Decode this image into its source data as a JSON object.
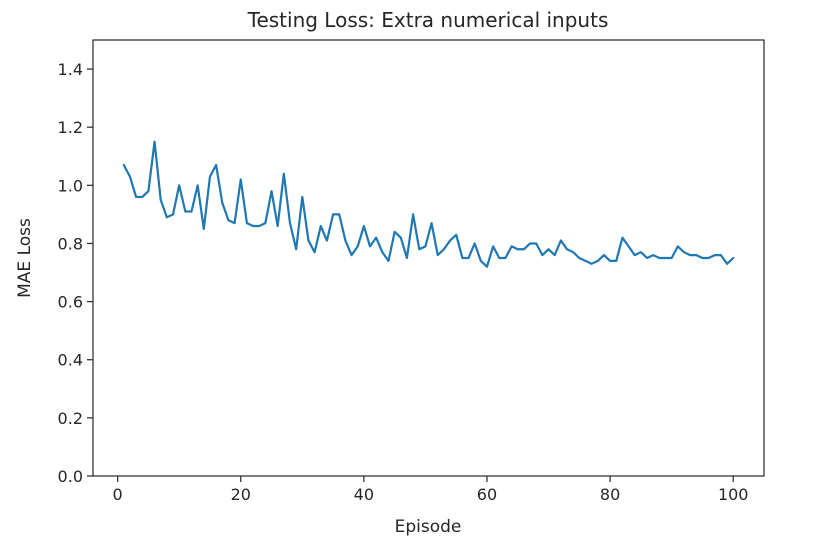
{
  "chart_data": {
    "type": "line",
    "title": "Testing Loss: Extra numerical inputs",
    "xlabel": "Episode",
    "ylabel": "MAE Loss",
    "xlim": [
      -4,
      105
    ],
    "ylim": [
      0,
      1.5
    ],
    "xticks": [
      0,
      20,
      40,
      60,
      80,
      100
    ],
    "yticks": [
      0.0,
      0.2,
      0.4,
      0.6,
      0.8,
      1.0,
      1.2,
      1.4
    ],
    "xtick_labels": [
      "0",
      "20",
      "40",
      "60",
      "80",
      "100"
    ],
    "ytick_labels": [
      "0.0",
      "0.2",
      "0.4",
      "0.6",
      "0.8",
      "1.0",
      "1.2",
      "1.4"
    ],
    "grid": false,
    "line_color": "#1f77b4",
    "series": [
      {
        "x": [
          1,
          2,
          3,
          4,
          5,
          6,
          7,
          8,
          9,
          10,
          11,
          12,
          13,
          14,
          15,
          16,
          17,
          18,
          19,
          20,
          21,
          22,
          23,
          24,
          25,
          26,
          27,
          28,
          29,
          30,
          31,
          32,
          33,
          34,
          35,
          36,
          37,
          38,
          39,
          40,
          41,
          42,
          43,
          44,
          45,
          46,
          47,
          48,
          49,
          50,
          51,
          52,
          53,
          54,
          55,
          56,
          57,
          58,
          59,
          60,
          61,
          62,
          63,
          64,
          65,
          66,
          67,
          68,
          69,
          70,
          71,
          72,
          73,
          74,
          75,
          76,
          77,
          78,
          79,
          80,
          81,
          82,
          83,
          84,
          85,
          86,
          87,
          88,
          89,
          90,
          91,
          92,
          93,
          94,
          95,
          96,
          97,
          98,
          99,
          100
        ],
        "values": [
          1.07,
          1.03,
          0.96,
          0.96,
          0.98,
          1.15,
          0.95,
          0.89,
          0.9,
          1.0,
          0.91,
          0.91,
          1.0,
          0.85,
          1.03,
          1.07,
          0.94,
          0.88,
          0.87,
          1.02,
          0.87,
          0.86,
          0.86,
          0.87,
          0.98,
          0.86,
          1.04,
          0.87,
          0.78,
          0.96,
          0.81,
          0.77,
          0.86,
          0.81,
          0.9,
          0.9,
          0.81,
          0.76,
          0.79,
          0.86,
          0.79,
          0.82,
          0.77,
          0.74,
          0.84,
          0.82,
          0.75,
          0.9,
          0.78,
          0.79,
          0.87,
          0.76,
          0.78,
          0.81,
          0.83,
          0.75,
          0.75,
          0.8,
          0.74,
          0.72,
          0.79,
          0.75,
          0.75,
          0.79,
          0.78,
          0.78,
          0.8,
          0.8,
          0.76,
          0.78,
          0.76,
          0.81,
          0.78,
          0.77,
          0.75,
          0.74,
          0.73,
          0.74,
          0.76,
          0.74,
          0.74,
          0.82,
          0.79,
          0.76,
          0.77,
          0.75,
          0.76,
          0.75,
          0.75,
          0.75,
          0.79,
          0.77,
          0.76,
          0.76,
          0.75,
          0.75,
          0.76,
          0.76,
          0.73,
          0.75
        ]
      }
    ]
  }
}
